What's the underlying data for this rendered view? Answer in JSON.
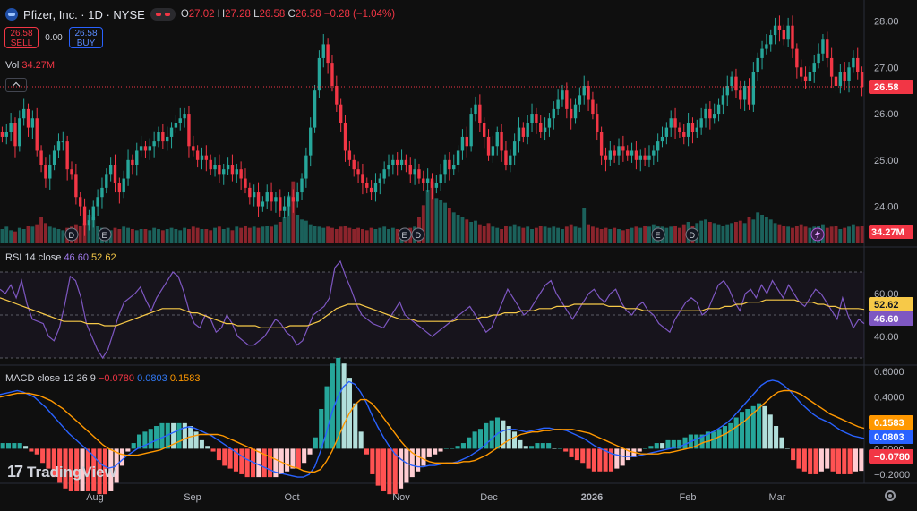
{
  "header": {
    "symbol": "Pfizer, Inc. · 1D · NYSE",
    "open_label": "O",
    "open": "27.02",
    "high_label": "H",
    "high": "27.28",
    "low_label": "L",
    "low": "26.58",
    "close_label": "C",
    "close": "26.58",
    "change": "−0.28 (−1.04%)"
  },
  "trade": {
    "sell_price": "26.58",
    "sell_label": "SELL",
    "spread": "0.00",
    "buy_price": "26.58",
    "buy_label": "BUY"
  },
  "volume": {
    "label": "Vol",
    "value": "34.27M"
  },
  "rsi": {
    "label": "RSI 14 close",
    "rsi_value": "46.60",
    "ma_value": "52.62"
  },
  "macd": {
    "label": "MACD close 12 26 9",
    "hist": "−0.0780",
    "macd": "0.0803",
    "signal": "0.1583"
  },
  "branding": {
    "logo_mark": "17",
    "name": "TradingView"
  },
  "colors": {
    "up": "#26a69a",
    "down": "#f23645",
    "rsi": "#7e57c2",
    "rsi_ma": "#f7c948",
    "macd": "#2962ff",
    "signal": "#ff9800"
  },
  "chart_data": [
    {
      "type": "candlestick",
      "y_ticks": [
        "28.00",
        "27.00",
        "26.00",
        "25.00",
        "24.00"
      ],
      "y_range": [
        23.2,
        28.3
      ],
      "last_price": "26.58",
      "x_labels": [
        "Aug",
        "Sep",
        "Oct",
        "Nov",
        "Dec",
        "2026",
        "Feb",
        "Mar"
      ],
      "events": [
        {
          "label": "D",
          "marker": "dividend"
        },
        {
          "label": "E",
          "marker": "earnings"
        },
        {
          "label": "E",
          "marker": "earnings"
        },
        {
          "label": "D",
          "marker": "dividend"
        },
        {
          "label": "E",
          "marker": "earnings"
        },
        {
          "label": "D",
          "marker": "dividend"
        },
        {
          "label": "E",
          "marker": "earnings"
        }
      ],
      "close": [
        25.5,
        25.6,
        25.8,
        25.3,
        25.9,
        26.1,
        25.7,
        25.9,
        25.2,
        24.9,
        24.6,
        24.9,
        25.2,
        25.4,
        25.4,
        24.8,
        24.7,
        24.2,
        24.0,
        23.6,
        23.7,
        24.0,
        24.2,
        24.4,
        24.7,
        24.9,
        24.5,
        24.3,
        24.6,
        25.0,
        24.9,
        25.2,
        25.3,
        25.2,
        25.3,
        25.4,
        25.6,
        25.4,
        25.5,
        25.7,
        25.8,
        25.9,
        26.0,
        25.3,
        25.2,
        25.0,
        25.1,
        25.0,
        24.8,
        24.9,
        24.7,
        24.8,
        24.9,
        24.7,
        24.8,
        24.6,
        24.4,
        24.2,
        24.3,
        24.0,
        24.1,
        24.3,
        24.1,
        24.2,
        23.9,
        24.0,
        24.2,
        24.1,
        24.3,
        24.6,
        25.1,
        25.7,
        26.5,
        27.2,
        27.5,
        27.1,
        26.6,
        26.2,
        25.8,
        25.2,
        25.0,
        24.8,
        24.7,
        24.5,
        24.4,
        24.3,
        24.5,
        24.6,
        24.8,
        24.9,
        25.0,
        24.9,
        25.0,
        24.9,
        24.7,
        24.8,
        24.6,
        24.5,
        24.6,
        24.4,
        24.5,
        24.7,
        25.0,
        24.8,
        24.9,
        25.2,
        25.5,
        25.3,
        26.0,
        26.2,
        25.8,
        25.5,
        25.1,
        25.3,
        25.6,
        25.2,
        24.9,
        25.1,
        25.4,
        25.7,
        25.5,
        25.8,
        26.0,
        25.8,
        25.6,
        25.7,
        25.9,
        26.1,
        26.3,
        26.5,
        26.1,
        25.9,
        26.2,
        26.4,
        26.6,
        26.3,
        26.0,
        25.6,
        25.1,
        25.0,
        25.2,
        25.1,
        25.3,
        25.2,
        25.1,
        25.2,
        25.0,
        25.1,
        25.0,
        25.1,
        25.2,
        25.4,
        25.5,
        25.7,
        25.9,
        25.7,
        25.6,
        25.5,
        25.8,
        25.6,
        25.7,
        25.9,
        26.1,
        25.9,
        26.0,
        26.2,
        26.4,
        26.6,
        26.8,
        26.5,
        26.3,
        26.6,
        26.2,
        26.9,
        27.2,
        27.4,
        27.5,
        27.7,
        27.9,
        27.8,
        27.6,
        27.9,
        27.4,
        27.0,
        26.8,
        26.7,
        26.9,
        27.1,
        27.3,
        27.6,
        27.2,
        26.8,
        26.6,
        26.9,
        26.7,
        27.0,
        27.2,
        26.9,
        26.58
      ],
      "volume": [
        12,
        14,
        11,
        10,
        13,
        12,
        15,
        14,
        16,
        22,
        17,
        14,
        13,
        12,
        11,
        13,
        14,
        16,
        15,
        17,
        24,
        22,
        15,
        13,
        12,
        11,
        13,
        12,
        14,
        13,
        12,
        11,
        12,
        12,
        11,
        13,
        12,
        11,
        12,
        13,
        12,
        11,
        13,
        12,
        14,
        13,
        12,
        12,
        11,
        13,
        14,
        12,
        13,
        11,
        14,
        13,
        15,
        13,
        14,
        13,
        14,
        15,
        14,
        16,
        18,
        22,
        40,
        52,
        24,
        20,
        19,
        16,
        15,
        14,
        13,
        14,
        13,
        12,
        14,
        15,
        13,
        12,
        13,
        12,
        11,
        13,
        12,
        13,
        14,
        12,
        13,
        12,
        11,
        12,
        13,
        14,
        22,
        32,
        45,
        52,
        38,
        36,
        34,
        30,
        26,
        24,
        22,
        20,
        18,
        19,
        16,
        15,
        17,
        14,
        13,
        12,
        15,
        14,
        16,
        14,
        13,
        14,
        12,
        13,
        15,
        14,
        13,
        14,
        13,
        12,
        14,
        16,
        14,
        13,
        30,
        16,
        14,
        13,
        12,
        13,
        12,
        13,
        12,
        11,
        12,
        13,
        14,
        13,
        15,
        14,
        16,
        15,
        14,
        13,
        14,
        15,
        13,
        16,
        18,
        15,
        17,
        19,
        20,
        18,
        17,
        16,
        15,
        16,
        17,
        18,
        19,
        17,
        22,
        20,
        26,
        24,
        22,
        20,
        17,
        16,
        15,
        14,
        13,
        15,
        16,
        14,
        13,
        14,
        15,
        16,
        13,
        14,
        15,
        12,
        13,
        14,
        16,
        14,
        15
      ]
    },
    {
      "type": "line",
      "name": "RSI 14 close",
      "y_ticks": [
        "60.00",
        "40.00"
      ],
      "y_range": [
        30,
        75
      ],
      "bands": [
        70,
        50,
        30
      ],
      "rsi": [
        62,
        60,
        64,
        58,
        66,
        55,
        48,
        47,
        46,
        40,
        38,
        44,
        55,
        68,
        66,
        58,
        46,
        40,
        34,
        30,
        34,
        42,
        50,
        56,
        58,
        60,
        63,
        57,
        52,
        58,
        62,
        66,
        70,
        68,
        61,
        52,
        46,
        44,
        50,
        48,
        42,
        44,
        50,
        46,
        40,
        38,
        36,
        36,
        38,
        40,
        44,
        48,
        46,
        42,
        40,
        36,
        38,
        44,
        50,
        52,
        54,
        58,
        72,
        75,
        68,
        62,
        55,
        50,
        48,
        46,
        45,
        44,
        48,
        52,
        56,
        50,
        48,
        46,
        44,
        42,
        40,
        42,
        44,
        46,
        48,
        50,
        52,
        54,
        50,
        46,
        42,
        44,
        50,
        56,
        62,
        58,
        54,
        50,
        52,
        56,
        60,
        64,
        66,
        60,
        56,
        52,
        48,
        52,
        56,
        60,
        62,
        58,
        56,
        60,
        62,
        56,
        52,
        50,
        54,
        56,
        52,
        50,
        46,
        44,
        42,
        48,
        52,
        56,
        58,
        56,
        50,
        52,
        58,
        64,
        66,
        62,
        56,
        52,
        60,
        62,
        58,
        64,
        60,
        66,
        62,
        58,
        64,
        60,
        56,
        54,
        58,
        62,
        60,
        56,
        52,
        48,
        58,
        50,
        44,
        48,
        46
      ],
      "rsi_ma": [
        58,
        57,
        56,
        55,
        54,
        53,
        52,
        51,
        50,
        49,
        48,
        47,
        47,
        47,
        47,
        46,
        46,
        46,
        45,
        45,
        45,
        46,
        47,
        48,
        49,
        50,
        51,
        52,
        53,
        53,
        53,
        53,
        52,
        51,
        51,
        50,
        49,
        48,
        47,
        46,
        46,
        45,
        45,
        45,
        45,
        44,
        44,
        44,
        44,
        44,
        45,
        45,
        45,
        45,
        46,
        47,
        49,
        51,
        53,
        54,
        55,
        55,
        55,
        54,
        53,
        52,
        51,
        50,
        49,
        48,
        48,
        48,
        47,
        47,
        47,
        47,
        47,
        47,
        47,
        48,
        48,
        48,
        48,
        49,
        49,
        50,
        50,
        51,
        51,
        51,
        52,
        52,
        52,
        53,
        53,
        53,
        54,
        54,
        54,
        55,
        55,
        55,
        55,
        55,
        55,
        54,
        54,
        54,
        53,
        53,
        53,
        52,
        52,
        52,
        52,
        52,
        52,
        52,
        52,
        52,
        52,
        52,
        53,
        53,
        53,
        54,
        54,
        55,
        55,
        56,
        56,
        56,
        57,
        57,
        57,
        57,
        57,
        57,
        56,
        56,
        56,
        55,
        55,
        54,
        54,
        53,
        53,
        53,
        53,
        52.62
      ]
    },
    {
      "type": "bar+line",
      "name": "MACD close 12 26 9",
      "y_ticks": [
        "0.6000",
        "0.4000",
        "0.2000",
        "0.0000",
        "−0.2000"
      ],
      "y_range": [
        -0.24,
        0.62
      ],
      "macd": [
        0.42,
        0.43,
        0.44,
        0.45,
        0.44,
        0.42,
        0.4,
        0.36,
        0.32,
        0.27,
        0.22,
        0.17,
        0.12,
        0.08,
        0.04,
        0.0,
        -0.04,
        -0.09,
        -0.13,
        -0.15,
        -0.14,
        -0.1,
        -0.06,
        -0.03,
        0.0,
        0.02,
        0.04,
        0.06,
        0.08,
        0.1,
        0.12,
        0.14,
        0.16,
        0.17,
        0.16,
        0.14,
        0.12,
        0.1,
        0.07,
        0.04,
        0.01,
        -0.02,
        -0.05,
        -0.08,
        -0.1,
        -0.12,
        -0.14,
        -0.16,
        -0.18,
        -0.19,
        -0.2,
        -0.21,
        -0.22,
        -0.22,
        -0.2,
        -0.14,
        -0.02,
        0.12,
        0.28,
        0.4,
        0.48,
        0.52,
        0.5,
        0.44,
        0.36,
        0.26,
        0.17,
        0.09,
        0.02,
        -0.04,
        -0.08,
        -0.11,
        -0.13,
        -0.14,
        -0.14,
        -0.13,
        -0.13,
        -0.12,
        -0.11,
        -0.11,
        -0.1,
        -0.08,
        -0.06,
        -0.03,
        0.0,
        0.04,
        0.08,
        0.12,
        0.14,
        0.15,
        0.15,
        0.14,
        0.13,
        0.14,
        0.15,
        0.16,
        0.16,
        0.15,
        0.15,
        0.14,
        0.12,
        0.1,
        0.08,
        0.05,
        0.02,
        0.0,
        -0.02,
        -0.04,
        -0.05,
        -0.06,
        -0.06,
        -0.06,
        -0.05,
        -0.04,
        -0.03,
        -0.02,
        -0.01,
        0.0,
        0.01,
        0.02,
        0.04,
        0.06,
        0.08,
        0.1,
        0.12,
        0.14,
        0.17,
        0.2,
        0.24,
        0.29,
        0.34,
        0.39,
        0.44,
        0.49,
        0.52,
        0.53,
        0.52,
        0.49,
        0.45,
        0.4,
        0.35,
        0.31,
        0.27,
        0.24,
        0.22,
        0.2,
        0.17,
        0.14,
        0.12,
        0.1,
        0.09,
        0.0803
      ],
      "signal": [
        0.4,
        0.41,
        0.42,
        0.43,
        0.43,
        0.43,
        0.42,
        0.41,
        0.39,
        0.37,
        0.34,
        0.31,
        0.27,
        0.23,
        0.19,
        0.15,
        0.11,
        0.07,
        0.03,
        0.0,
        -0.02,
        -0.04,
        -0.05,
        -0.05,
        -0.05,
        -0.04,
        -0.03,
        -0.02,
        -0.01,
        0.01,
        0.03,
        0.05,
        0.07,
        0.09,
        0.1,
        0.11,
        0.11,
        0.11,
        0.11,
        0.1,
        0.08,
        0.06,
        0.04,
        0.02,
        0.0,
        -0.02,
        -0.04,
        -0.06,
        -0.08,
        -0.1,
        -0.12,
        -0.14,
        -0.15,
        -0.17,
        -0.18,
        -0.18,
        -0.16,
        -0.1,
        -0.02,
        0.08,
        0.18,
        0.27,
        0.34,
        0.38,
        0.38,
        0.35,
        0.3,
        0.24,
        0.18,
        0.12,
        0.06,
        0.01,
        -0.03,
        -0.06,
        -0.08,
        -0.1,
        -0.11,
        -0.11,
        -0.11,
        -0.11,
        -0.11,
        -0.1,
        -0.1,
        -0.09,
        -0.07,
        -0.05,
        -0.02,
        0.01,
        0.04,
        0.07,
        0.09,
        0.11,
        0.12,
        0.13,
        0.13,
        0.14,
        0.14,
        0.15,
        0.15,
        0.15,
        0.15,
        0.14,
        0.13,
        0.12,
        0.1,
        0.08,
        0.06,
        0.04,
        0.02,
        0.0,
        -0.02,
        -0.03,
        -0.04,
        -0.04,
        -0.04,
        -0.04,
        -0.03,
        -0.03,
        -0.02,
        -0.01,
        0.0,
        0.01,
        0.03,
        0.05,
        0.06,
        0.08,
        0.1,
        0.12,
        0.15,
        0.18,
        0.21,
        0.25,
        0.29,
        0.33,
        0.37,
        0.41,
        0.44,
        0.45,
        0.45,
        0.44,
        0.42,
        0.39,
        0.36,
        0.33,
        0.3,
        0.27,
        0.25,
        0.23,
        0.21,
        0.19,
        0.17,
        0.1583
      ]
    }
  ]
}
